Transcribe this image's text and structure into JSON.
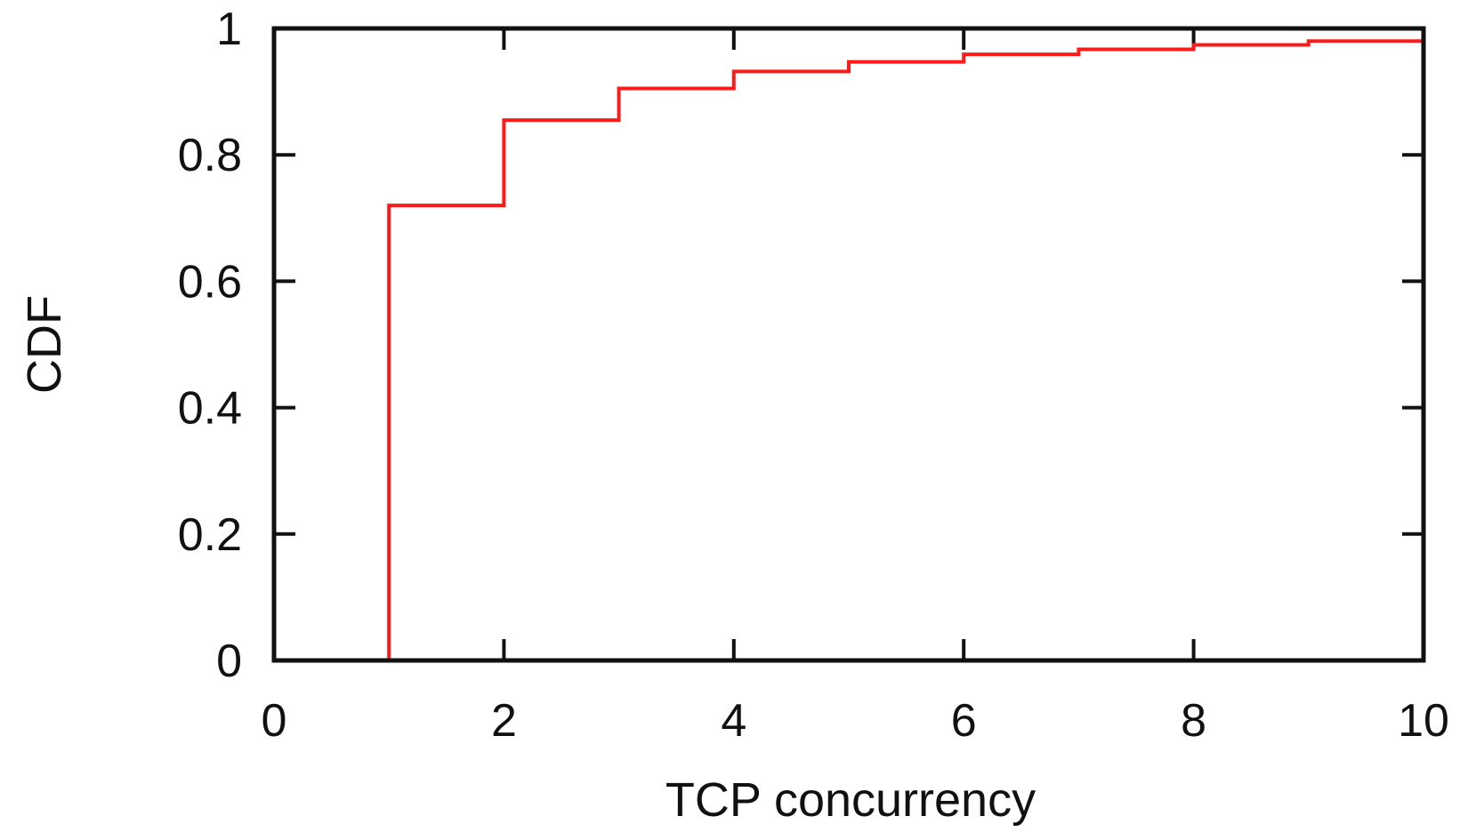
{
  "chart_data": {
    "type": "line",
    "title": "",
    "xlabel": "TCP concurrency",
    "ylabel": "CDF",
    "xlim": [
      0,
      10
    ],
    "ylim": [
      0,
      1
    ],
    "x_ticks": [
      0,
      2,
      4,
      6,
      8,
      10
    ],
    "y_ticks": [
      0,
      0.2,
      0.4,
      0.6,
      0.8,
      1
    ],
    "x_tick_labels": [
      "0",
      "2",
      "4",
      "6",
      "8",
      "10"
    ],
    "y_tick_labels": [
      "0",
      "0.2",
      "0.4",
      "0.6",
      "0.8",
      "1"
    ],
    "grid": false,
    "legend": "none",
    "series": [
      {
        "step": "post",
        "color": "#ff1a1a",
        "x": [
          1,
          2,
          3,
          4,
          5,
          6,
          7,
          8,
          9,
          10
        ],
        "y": [
          0.72,
          0.855,
          0.905,
          0.932,
          0.947,
          0.959,
          0.967,
          0.974,
          0.98,
          0.983
        ]
      }
    ]
  }
}
